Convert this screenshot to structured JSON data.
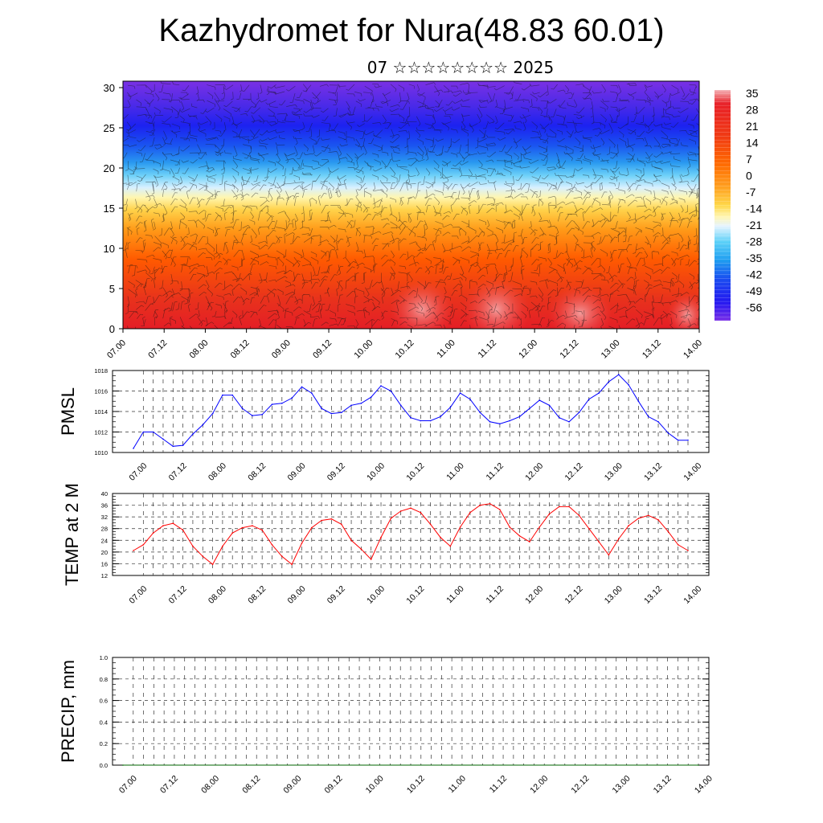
{
  "header": {
    "title": "Kazhydromet for Nura(48.83 60.01)",
    "subtitle": "07 ☆☆☆☆☆☆☆☆ 2025"
  },
  "colors": {
    "pmsl_line": "#0000ff",
    "temp_line": "#ff0000",
    "precip_line": "#006400",
    "palette": [
      "#f4aab0",
      "#e8202a",
      "#f23a10",
      "#ff6a00",
      "#ff9a1a",
      "#ffd040",
      "#fff2a0",
      "#e8f4ff",
      "#5fd0f8",
      "#1e9cf0",
      "#1a4af0",
      "#2a18f0",
      "#7a30e8"
    ]
  },
  "chart_data": [
    {
      "type": "heatmap",
      "name": "vertical cross-section",
      "title": "",
      "xlabel": "",
      "ylabel": "",
      "x_tick_labels": [
        "07.00",
        "07.12",
        "08.00",
        "08.12",
        "09.00",
        "09.12",
        "10.00",
        "10.12",
        "11.00",
        "11.12",
        "12.00",
        "12.12",
        "13.00",
        "13.12",
        "14.00"
      ],
      "y_ticks": [
        0,
        5,
        10,
        15,
        20,
        25,
        30
      ],
      "ylim": [
        0,
        30.8
      ],
      "colorbar_labels": [
        "35",
        "28",
        "21",
        "14",
        "7",
        "0",
        "-7",
        "-14",
        "-21",
        "-28",
        "-35",
        "-42",
        "-49",
        "-56"
      ],
      "overlay": "wind barbs"
    },
    {
      "type": "line",
      "name": "PMSL",
      "ylabel": "PMSL",
      "x_tick_labels": [
        "07.00",
        "07.12",
        "08.00",
        "08.12",
        "09.00",
        "09.12",
        "10.00",
        "10.12",
        "11.00",
        "11.12",
        "12.00",
        "12.12",
        "13.00",
        "13.12",
        "14.00"
      ],
      "y_ticks": [
        "1010",
        "1012",
        "1014",
        "1016",
        "1018"
      ],
      "ylim": [
        1010,
        1018
      ],
      "x_hours": [
        -3,
        0,
        3,
        6,
        9,
        12,
        15,
        18,
        21,
        24,
        27,
        30,
        33,
        36,
        39,
        42,
        45,
        48,
        51,
        54,
        57,
        60,
        63,
        66,
        69,
        72,
        75,
        78,
        81,
        84,
        87,
        90,
        93,
        96,
        99,
        102,
        105,
        108,
        111,
        114,
        117,
        120,
        123,
        126,
        129,
        132,
        135,
        138,
        141,
        144,
        147,
        150,
        153,
        156,
        159,
        162,
        165
      ],
      "values": [
        1010.4,
        1012.0,
        1012.0,
        1011.3,
        1010.6,
        1010.7,
        1011.8,
        1012.7,
        1013.8,
        1015.6,
        1015.6,
        1014.3,
        1013.6,
        1013.7,
        1014.7,
        1014.8,
        1015.3,
        1016.4,
        1015.8,
        1014.3,
        1013.8,
        1013.9,
        1014.6,
        1014.8,
        1015.4,
        1016.5,
        1016.0,
        1014.6,
        1013.4,
        1013.1,
        1013.1,
        1013.5,
        1014.4,
        1015.8,
        1015.2,
        1013.9,
        1013.0,
        1012.8,
        1013.1,
        1013.5,
        1014.3,
        1015.1,
        1014.6,
        1013.4,
        1013.0,
        1013.9,
        1015.2,
        1015.8,
        1016.9,
        1017.6,
        1016.6,
        1015.0,
        1013.5,
        1013.0,
        1011.9,
        1011.2,
        1011.2
      ]
    },
    {
      "type": "line",
      "name": "TEMP at 2 M",
      "ylabel": "TEMP at 2 M",
      "x_tick_labels": [
        "07.00",
        "07.12",
        "08.00",
        "08.12",
        "09.00",
        "09.12",
        "10.00",
        "10.12",
        "11.00",
        "11.12",
        "12.00",
        "12.12",
        "13.00",
        "13.12",
        "14.00"
      ],
      "y_ticks": [
        "12",
        "16",
        "20",
        "24",
        "28",
        "32",
        "36",
        "40"
      ],
      "ylim": [
        12,
        40
      ],
      "x_hours": [
        -3,
        0,
        3,
        6,
        9,
        12,
        15,
        18,
        21,
        24,
        27,
        30,
        33,
        36,
        39,
        42,
        45,
        48,
        51,
        54,
        57,
        60,
        63,
        66,
        69,
        72,
        75,
        78,
        81,
        84,
        87,
        90,
        93,
        96,
        99,
        102,
        105,
        108,
        111,
        114,
        117,
        120,
        123,
        126,
        129,
        132,
        135,
        138,
        141,
        144,
        147,
        150,
        153,
        156,
        159,
        162,
        165
      ],
      "values": [
        20.5,
        22.5,
        26.5,
        29.0,
        29.8,
        27.5,
        22.0,
        18.5,
        15.8,
        22.0,
        26.5,
        28.3,
        29.0,
        27.5,
        22.5,
        18.5,
        15.8,
        23.0,
        28.3,
        30.8,
        31.3,
        29.5,
        24.0,
        21.0,
        17.5,
        25.0,
        31.5,
        34.0,
        35.0,
        33.5,
        29.5,
        25.0,
        22.0,
        28.5,
        33.5,
        36.0,
        36.5,
        34.5,
        28.5,
        25.5,
        23.5,
        28.5,
        33.0,
        35.5,
        35.5,
        32.5,
        28.0,
        23.5,
        19.0,
        24.5,
        29.0,
        31.5,
        32.5,
        31.0,
        27.0,
        22.5,
        20.5
      ]
    },
    {
      "type": "line",
      "name": "PRECIP",
      "ylabel": "PRECIP, mm",
      "x_tick_labels": [
        "07.00",
        "07.12",
        "08.00",
        "08.12",
        "09.00",
        "09.12",
        "10.00",
        "10.12",
        "11.00",
        "11.12",
        "12.00",
        "12.12",
        "13.00",
        "13.12",
        "14.00"
      ],
      "y_ticks": [
        "0.0",
        "0.2",
        "0.4",
        "0.6",
        "0.8",
        "1.0"
      ],
      "ylim": [
        0,
        1
      ],
      "x_hours": [
        -3,
        165
      ],
      "values": [
        0,
        0
      ]
    }
  ]
}
